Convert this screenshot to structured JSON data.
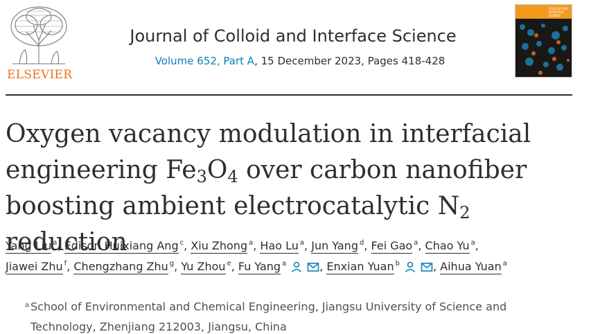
{
  "publisher": {
    "wordmark": "ELSEVIER"
  },
  "journal": {
    "title": "Journal of Colloid and Interface Science",
    "volume_link": "Volume 652, Part A",
    "issue_rest": ", 15 December 2023, Pages 418-428",
    "cover_text": "COLLOID AND INTERFACE SCIENCE"
  },
  "article": {
    "title_part1": "Oxygen vacancy modulation in interfacial engineering Fe",
    "title_sub1": "3",
    "title_part2": "O",
    "title_sub2": "4",
    "title_part3": " over carbon nanofiber boosting ambient electrocatalytic N",
    "title_sub3": "2",
    "title_part4": " reduction"
  },
  "authors": [
    {
      "name": "Yang Liu",
      "sup": "a"
    },
    {
      "name": "Edison Huixiang Ang",
      "sup": "c"
    },
    {
      "name": "Xiu Zhong",
      "sup": "a"
    },
    {
      "name": "Hao Lu",
      "sup": "a"
    },
    {
      "name": "Jun Yang",
      "sup": "d"
    },
    {
      "name": "Fei Gao",
      "sup": "a"
    },
    {
      "name": "Chao Yu",
      "sup": "a"
    },
    {
      "name": "Jiawei Zhu",
      "sup": "f"
    },
    {
      "name": "Chengzhang Zhu",
      "sup": "g"
    },
    {
      "name": "Yu Zhou",
      "sup": "e"
    },
    {
      "name": "Fu Yang",
      "sup": "a"
    },
    {
      "name": "Enxian Yuan",
      "sup": "b"
    },
    {
      "name": "Aihua Yuan",
      "sup": "a"
    }
  ],
  "icons": {
    "person": "person-icon",
    "mail": "mail-icon",
    "accent": "#0c7dbb"
  },
  "affiliation": {
    "sup": "a",
    "text": "School of Environmental and Chemical Engineering, Jiangsu University of Science and Technology, Zhenjiang 212003, Jiangsu, China"
  }
}
